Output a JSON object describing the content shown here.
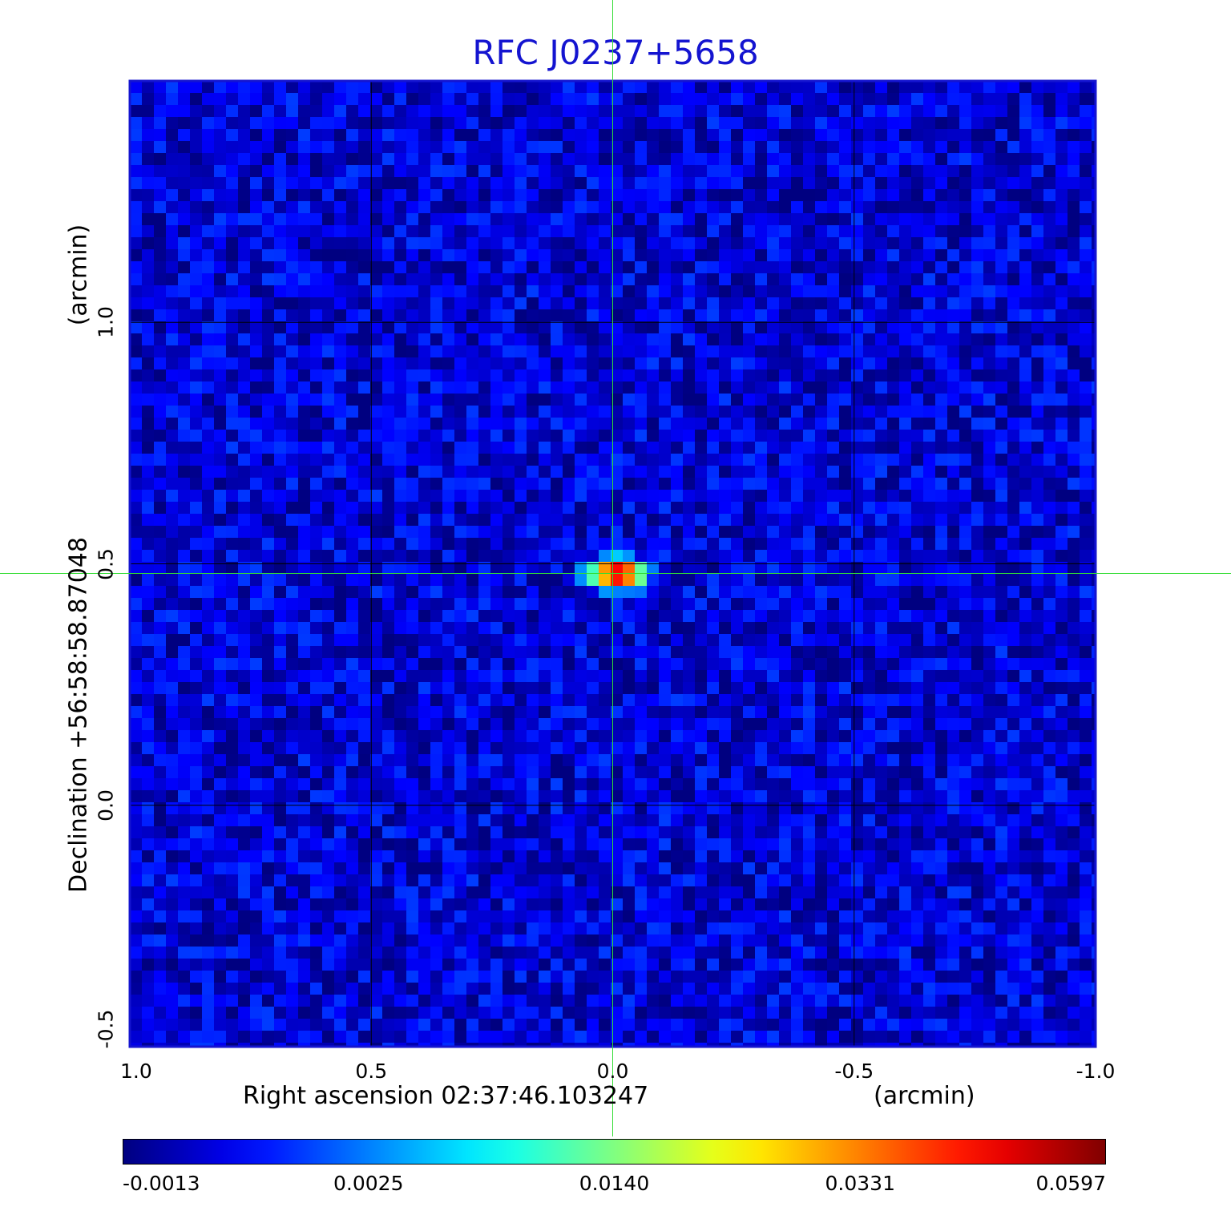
{
  "chart_data": {
    "type": "heatmap",
    "title": "RFC J0237+5658",
    "xlabel": "Right ascension  02:37:46.103247",
    "xunit": "(arcmin)",
    "ylabel": "Declination  +56:58:58.87048",
    "yunit": "(arcmin)",
    "x_range": [
      1.0,
      -1.0
    ],
    "y_range": [
      -0.5,
      1.5
    ],
    "x_ticks": [
      "1.0",
      "0.5",
      "0.0",
      "-0.5",
      "-1.0"
    ],
    "y_ticks": [
      "-0.5",
      "0.0",
      "0.5",
      "1.0"
    ],
    "grid": true,
    "crosshair": {
      "x": 0.0,
      "y": 0.48,
      "color": "#33dd33"
    },
    "source_peak": {
      "x": -0.01,
      "y": 0.48,
      "value": 0.0597
    },
    "background_level": 0.0,
    "colorbar": {
      "colormap": "jet",
      "labels": [
        "-0.0013",
        "0.0025",
        "0.0140",
        "0.0331",
        "0.0597"
      ],
      "min": -0.0013,
      "max": 0.0597
    },
    "frame_color": "#1414d0"
  }
}
